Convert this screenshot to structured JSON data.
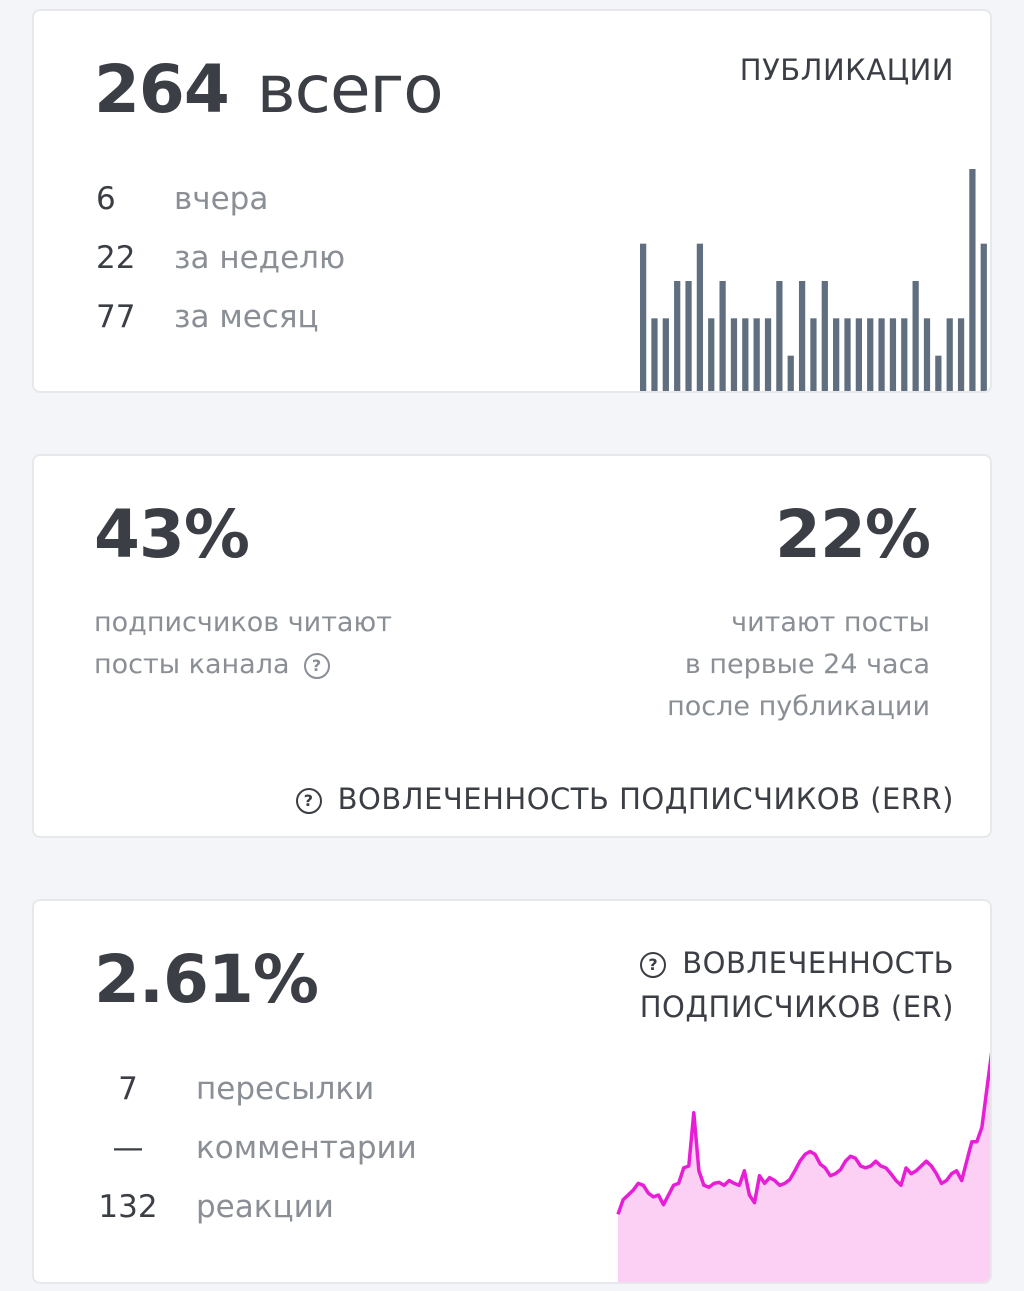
{
  "publications": {
    "total_value": "264",
    "total_suffix": "всего",
    "title": "ПУБЛИКАЦИИ",
    "stats": [
      {
        "value": "6",
        "label": "вчера"
      },
      {
        "value": "22",
        "label": "за неделю"
      },
      {
        "value": "77",
        "label": "за месяц"
      }
    ]
  },
  "reach": {
    "left_value": "43%",
    "left_desc_line1": "подписчиков читают",
    "left_desc_line2": "посты канала",
    "right_value": "22%",
    "right_desc_line1": "читают посты",
    "right_desc_line2": "в первые 24 часа",
    "right_desc_line3": "после публикации",
    "title": "ВОВЛЕЧЕННОСТЬ ПОДПИСЧИКОВ (ERR)"
  },
  "engagement": {
    "value": "2.61%",
    "title_line1": "ВОВЛЕЧЕННОСТЬ",
    "title_line2": "ПОДПИСЧИКОВ (ER)",
    "stats": [
      {
        "value": "7",
        "label": "пересылки"
      },
      {
        "value": "—",
        "label": "комментарии"
      },
      {
        "value": "132",
        "label": "реакции"
      }
    ]
  },
  "colors": {
    "bar": "#5f6f80",
    "er_line": "#e81ed6",
    "er_fill": "#fbd0f4"
  },
  "chart_data": [
    {
      "type": "bar",
      "title": "",
      "categories": [
        "1",
        "2",
        "3",
        "4",
        "5",
        "6",
        "7",
        "8",
        "9",
        "10",
        "11",
        "12",
        "13",
        "14",
        "15",
        "16",
        "17",
        "18",
        "19",
        "20",
        "21",
        "22",
        "23",
        "24",
        "25",
        "26",
        "27",
        "28",
        "29",
        "30",
        "31"
      ],
      "values": [
        4,
        2,
        2,
        3,
        3,
        4,
        2,
        3,
        2,
        2,
        2,
        2,
        3,
        1,
        3,
        2,
        3,
        2,
        2,
        2,
        2,
        2,
        2,
        2,
        3,
        2,
        1,
        2,
        2,
        6,
        4
      ],
      "ylim": [
        0,
        6
      ],
      "grid": false
    },
    {
      "type": "area",
      "title": "",
      "x": [
        1,
        2,
        3,
        4,
        5,
        6,
        7,
        8,
        9,
        10,
        11,
        12,
        13,
        14,
        15,
        16,
        17,
        18,
        19,
        20,
        21,
        22,
        23,
        24,
        25,
        26,
        27,
        28,
        29,
        30,
        31,
        32,
        33,
        34,
        35,
        36,
        37,
        38,
        39,
        40,
        41,
        42,
        43,
        44,
        45,
        46,
        47,
        48,
        49,
        50,
        51,
        52,
        53,
        54,
        55,
        56,
        57,
        58,
        59,
        60,
        61,
        62,
        63,
        64,
        65,
        66,
        67,
        68,
        69,
        70,
        71,
        72,
        73,
        74,
        75
      ],
      "values": [
        2.3,
        2.45,
        2.5,
        2.55,
        2.62,
        2.6,
        2.52,
        2.48,
        2.5,
        2.4,
        2.5,
        2.6,
        2.62,
        2.78,
        2.8,
        3.35,
        2.75,
        2.6,
        2.58,
        2.62,
        2.63,
        2.6,
        2.65,
        2.62,
        2.6,
        2.75,
        2.5,
        2.42,
        2.7,
        2.62,
        2.68,
        2.65,
        2.6,
        2.62,
        2.66,
        2.75,
        2.85,
        2.92,
        2.95,
        2.92,
        2.82,
        2.78,
        2.7,
        2.72,
        2.76,
        2.85,
        2.9,
        2.88,
        2.8,
        2.78,
        2.8,
        2.85,
        2.8,
        2.78,
        2.72,
        2.65,
        2.6,
        2.78,
        2.72,
        2.75,
        2.8,
        2.85,
        2.8,
        2.72,
        2.62,
        2.65,
        2.72,
        2.75,
        2.65,
        2.85,
        3.05,
        3.05,
        3.2,
        3.6,
        4.0
      ],
      "grid": false
    }
  ]
}
